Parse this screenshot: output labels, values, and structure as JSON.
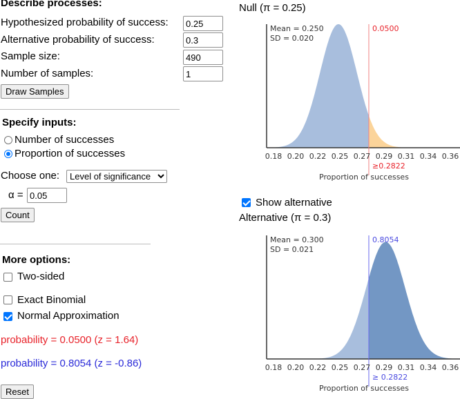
{
  "left": {
    "describe_title": "Describe processes:",
    "fields": [
      {
        "label": "Hypothesized probability of success:",
        "value": "0.25"
      },
      {
        "label": "Alternative probability of success:",
        "value": "0.3"
      },
      {
        "label": "Sample size:",
        "value": "490"
      },
      {
        "label": "Number of samples:",
        "value": "1"
      }
    ],
    "draw_button": "Draw Samples",
    "specify_title": "Specify inputs:",
    "radios": [
      {
        "label": "Number of successes",
        "checked": false
      },
      {
        "label": "Proportion of successes",
        "checked": true
      }
    ],
    "choose_label": "Choose one:",
    "choose_value": "Level of significance",
    "alpha_label": "α =",
    "alpha_value": "0.05",
    "count_button": "Count",
    "more_title": "More options:",
    "options": [
      {
        "label": "Two-sided",
        "checked": false
      },
      {
        "label": "Exact Binomial",
        "checked": false
      },
      {
        "label": "Normal Approximation",
        "checked": true
      }
    ],
    "prob_null": "probability = 0.0500 (z = 1.64)",
    "prob_alt": "probability = 0.8054 (z = -0.86)",
    "reset_button": "Reset"
  },
  "colors": {
    "null_fill": "#a8bedd",
    "null_tail": "#fbd49a",
    "alt_left": "#a8bedd",
    "alt_right": "#7397c4",
    "null_line": "#f08080",
    "alt_line": "#6a6aee",
    "red_text": "#e8222a",
    "blue_text": "#2a2ad8"
  },
  "null_chart": {
    "title": "Null (π = 0.25)",
    "mean_label": "Mean = 0.250",
    "sd_label": "SD = 0.020",
    "mean": 0.25,
    "sd": 0.0196,
    "cutoff": 0.2822,
    "area_label": "0.0500",
    "cutoff_label": "≥0.2822",
    "xlabel": "Proportion of successes",
    "ticks": [
      "0.18",
      "0.20",
      "0.22",
      "0.25",
      "0.27",
      "0.29",
      "0.31",
      "0.34",
      "0.36"
    ]
  },
  "show_alternative": {
    "label": "Show alternative",
    "checked": true
  },
  "alt_chart": {
    "title": "Alternative (π = 0.3)",
    "mean_label": "Mean = 0.300",
    "sd_label": "SD = 0.021",
    "mean": 0.3,
    "sd": 0.0207,
    "cutoff": 0.2822,
    "area_label": "0.8054",
    "cutoff_label": "≥ 0.2822",
    "xlabel": "Proportion of successes",
    "ticks": [
      "0.18",
      "0.20",
      "0.22",
      "0.25",
      "0.27",
      "0.29",
      "0.31",
      "0.34",
      "0.36"
    ]
  }
}
